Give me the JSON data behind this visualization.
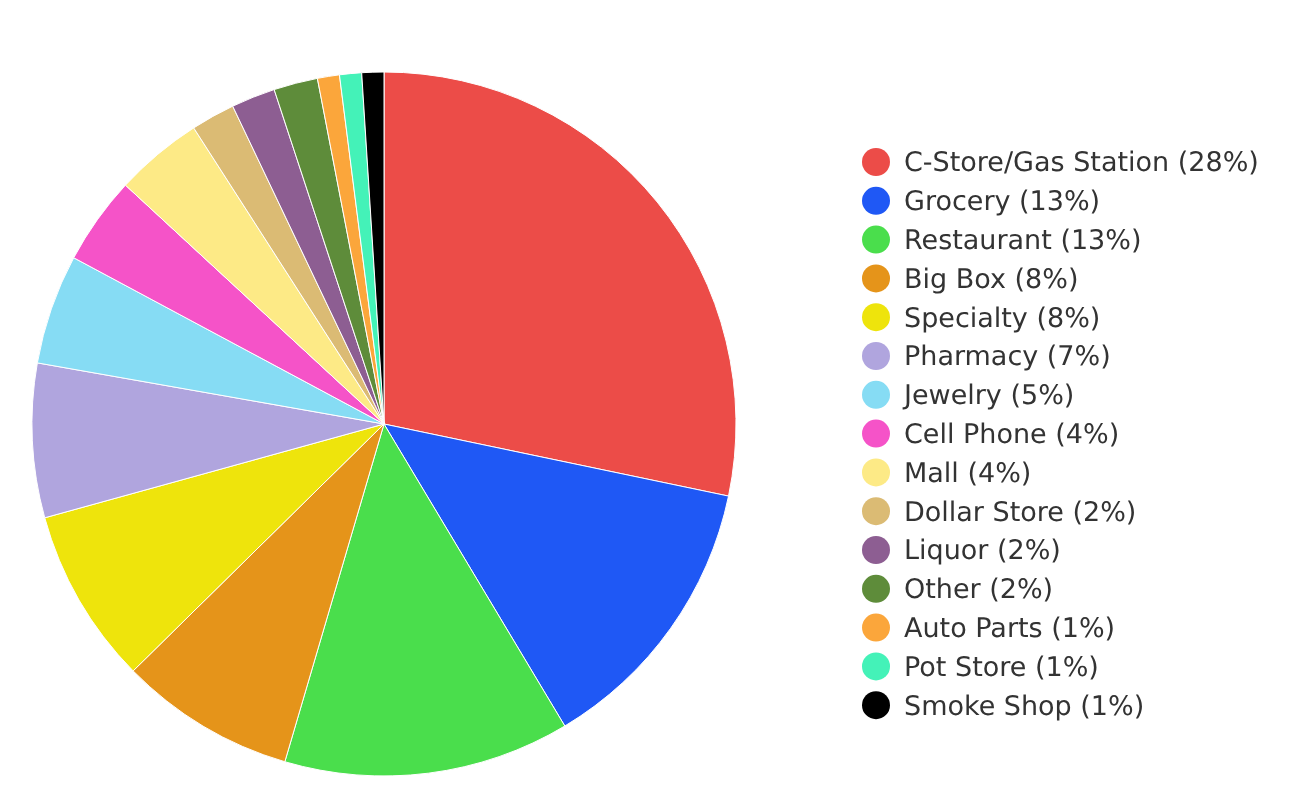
{
  "chart_data": {
    "type": "pie",
    "categories": [
      "C-Store/Gas Station (28%)",
      "Grocery (13%)",
      "Restaurant (13%)",
      "Big Box (8%)",
      "Specialty (8%)",
      "Pharmacy (7%)",
      "Jewelry (5%)",
      "Cell Phone (4%)",
      "Mall (4%)",
      "Dollar Store (2%)",
      "Liquor (2%)",
      "Other (2%)",
      "Auto Parts (1%)",
      "Pot Store (1%)",
      "Smoke Shop (1%)"
    ],
    "values": [
      28,
      13,
      13,
      8,
      8,
      7,
      5,
      4,
      4,
      2,
      2,
      2,
      1,
      1,
      1
    ],
    "colors": [
      "#ec4c48",
      "#1f58f5",
      "#4ade4c",
      "#e5941a",
      "#eee40c",
      "#b0a5de",
      "#86dcf4",
      "#f553c8",
      "#fdea86",
      "#dbbb74",
      "#8d5e92",
      "#5e8c3a",
      "#fba63b",
      "#44f2b8",
      "#000000"
    ],
    "legend": "right"
  }
}
